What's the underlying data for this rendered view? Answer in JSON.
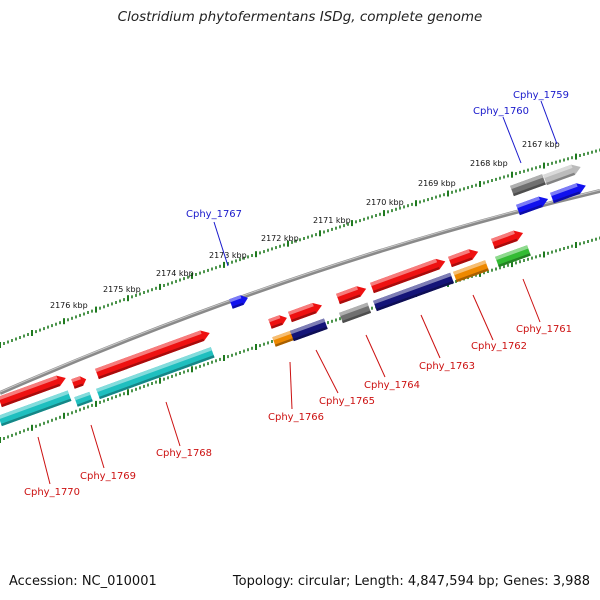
{
  "title": "Clostridium phytofermentans ISDg, complete genome",
  "footer": {
    "accession": "Accession: NC_010001",
    "topology": "Topology: circular; Length: 4,847,594 bp; Genes: 3,988"
  },
  "colors": {
    "backbone": "#808080",
    "tick": "#1f7a1f",
    "forward_label": "#1a1acc",
    "reverse_label": "#cc1111",
    "cds": "#ee1111",
    "gray_feature": "#707070",
    "navy_feature": "#141478",
    "cyan_feature": "#1fbfbf",
    "orange_feature": "#ee8800",
    "green_feature": "#33bb33",
    "blue_feature": "#1111ee",
    "light_gray_feature": "#bbbbbb"
  },
  "kbp_ticks": [
    {
      "label": "2167 kbp"
    },
    {
      "label": "2168 kbp"
    },
    {
      "label": "2169 kbp"
    },
    {
      "label": "2170 kbp"
    },
    {
      "label": "2171 kbp"
    },
    {
      "label": "2172 kbp"
    },
    {
      "label": "2173 kbp"
    },
    {
      "label": "2174 kbp"
    },
    {
      "label": "2175 kbp"
    },
    {
      "label": "2176 kbp"
    }
  ],
  "genes": [
    {
      "name": "Cphy_1759",
      "strand": "forward"
    },
    {
      "name": "Cphy_1760",
      "strand": "forward"
    },
    {
      "name": "Cphy_1761",
      "strand": "reverse"
    },
    {
      "name": "Cphy_1762",
      "strand": "reverse"
    },
    {
      "name": "Cphy_1763",
      "strand": "reverse"
    },
    {
      "name": "Cphy_1764",
      "strand": "reverse"
    },
    {
      "name": "Cphy_1765",
      "strand": "reverse"
    },
    {
      "name": "Cphy_1766",
      "strand": "reverse"
    },
    {
      "name": "Cphy_1767",
      "strand": "forward"
    },
    {
      "name": "Cphy_1768",
      "strand": "reverse"
    },
    {
      "name": "Cphy_1769",
      "strand": "reverse"
    },
    {
      "name": "Cphy_1770",
      "strand": "reverse"
    }
  ]
}
